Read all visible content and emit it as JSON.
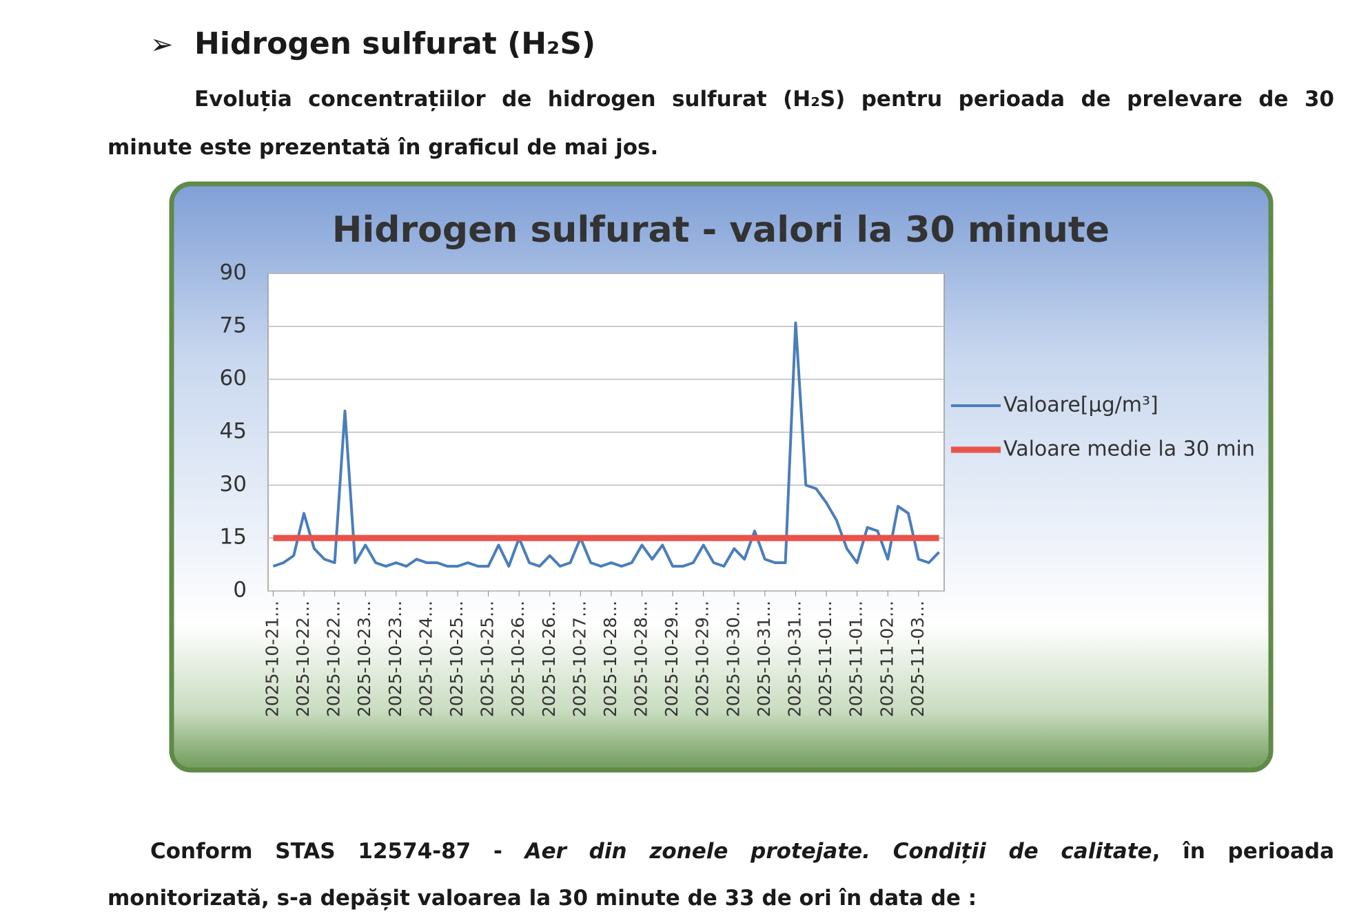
{
  "heading": "Hidrogen sulfurat (H₂S)",
  "paragraph1": {
    "lines": [
      "Evoluția concentrațiilor de hidrogen sulfurat (H₂S) pentru perioada de prelevare de 30",
      "minute este prezentată în graficul de mai jos."
    ]
  },
  "chart_data": {
    "type": "line",
    "title": "Hidrogen sulfurat - valori la 30 minute",
    "categories": [
      "2025-10-21...",
      null,
      null,
      "2025-10-22...",
      null,
      null,
      "2025-10-22...",
      null,
      null,
      "2025-10-23...",
      null,
      null,
      "2025-10-23...",
      null,
      null,
      "2025-10-24...",
      null,
      null,
      "2025-10-25...",
      null,
      null,
      "2025-10-25...",
      null,
      null,
      "2025-10-26...",
      null,
      null,
      "2025-10-26...",
      null,
      null,
      "2025-10-27...",
      null,
      null,
      "2025-10-28...",
      null,
      null,
      "2025-10-28...",
      null,
      null,
      "2025-10-29...",
      null,
      null,
      "2025-10-29...",
      null,
      null,
      "2025-10-30...",
      null,
      null,
      "2025-10-31...",
      null,
      null,
      "2025-10-31...",
      null,
      null,
      "2025-11-01...",
      null,
      null,
      "2025-11-01...",
      null,
      null,
      "2025-11-02...",
      null,
      null,
      "2025-11-03...",
      null,
      null
    ],
    "series": [
      {
        "name": "Valoare[µg/m³]",
        "color": "#4a7ebb",
        "values": [
          7,
          8,
          10,
          22,
          12,
          9,
          8,
          51,
          8,
          13,
          8,
          7,
          8,
          7,
          9,
          8,
          8,
          7,
          7,
          8,
          7,
          7,
          13,
          7,
          15,
          8,
          7,
          10,
          7,
          8,
          15,
          8,
          7,
          8,
          7,
          8,
          13,
          9,
          13,
          7,
          7,
          8,
          13,
          8,
          7,
          12,
          9,
          17,
          9,
          8,
          8,
          76,
          30,
          29,
          25,
          20,
          12,
          8,
          18,
          17,
          9,
          24,
          22,
          9,
          8,
          11
        ]
      },
      {
        "name": "Valoare medie la 30 min",
        "color": "#e8534a",
        "values": [
          15,
          15,
          15,
          15,
          15,
          15,
          15,
          15,
          15,
          15,
          15,
          15,
          15,
          15,
          15,
          15,
          15,
          15,
          15,
          15,
          15,
          15,
          15,
          15,
          15,
          15,
          15,
          15,
          15,
          15,
          15,
          15,
          15,
          15,
          15,
          15,
          15,
          15,
          15,
          15,
          15,
          15,
          15,
          15,
          15,
          15,
          15,
          15,
          15,
          15,
          15,
          15,
          15,
          15,
          15,
          15,
          15,
          15,
          15,
          15,
          15,
          15,
          15,
          15,
          15,
          15
        ]
      }
    ],
    "ylim": [
      0,
      90
    ],
    "yticks": [
      0,
      15,
      30,
      45,
      60,
      75,
      90
    ],
    "grid": true,
    "legend": "right"
  },
  "paragraph2": {
    "line1": [
      "Conform STAS 12574-87 - ",
      "Aer din zonele protejate. Condiții de calitate",
      ", în perioada"
    ],
    "line2": "monitorizată, s-a depășit valoarea la 30 minute de 33 de ori în data de :"
  }
}
